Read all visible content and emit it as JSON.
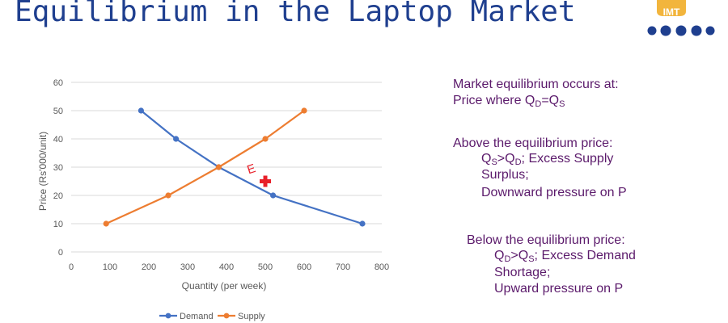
{
  "slide": {
    "title": "Equilibrium in the Laptop Market",
    "logo_text": "IMT",
    "colors": {
      "title": "#1f3f8f",
      "notes": "#5b1a6b",
      "demand": "#4472c4",
      "supply": "#ed7d31",
      "marker": "#e8202a",
      "logo_blue": "#1f3f8f",
      "logo_gold": "#f2b53d"
    }
  },
  "notes": {
    "block1": {
      "line1": "Market equilibrium occurs at:",
      "line2": {
        "prefix": "Price where Q",
        "sub1": "D",
        "mid": "=Q",
        "sub2": "S"
      }
    },
    "block2": {
      "heading": "Above the equilibrium price:",
      "line1": {
        "q1": "Q",
        "sub1": "S",
        "op": ">Q",
        "sub2": "D",
        "rest": "; Excess Supply"
      },
      "line2": "Surplus;",
      "line3": "Downward pressure on P"
    },
    "block3": {
      "heading": "Below the equilibrium price:",
      "line1": {
        "q1": "Q",
        "sub1": "D",
        "op": ">Q",
        "sub2": "S",
        "rest": "; Excess Demand"
      },
      "line2": "Shortage;",
      "line3": "Upward pressure on P"
    }
  },
  "chart_data": {
    "type": "line",
    "title": "",
    "xlabel": "Quantity (per week)",
    "ylabel": "Price (Rs'000/unit)",
    "xlim": [
      0,
      800
    ],
    "ylim": [
      0,
      60
    ],
    "xticks": [
      "0",
      "100",
      "200",
      "300",
      "400",
      "500",
      "600",
      "700",
      "800"
    ],
    "yticks": [
      "0",
      "10",
      "20",
      "30",
      "40",
      "50",
      "60"
    ],
    "grid": true,
    "legend_position": "bottom",
    "series": [
      {
        "name": "Demand",
        "color": "#4472c4",
        "points": [
          [
            180,
            50
          ],
          [
            270,
            40
          ],
          [
            380,
            30
          ],
          [
            520,
            20
          ],
          [
            750,
            10
          ]
        ]
      },
      {
        "name": "Supply",
        "color": "#ed7d31",
        "points": [
          [
            90,
            10
          ],
          [
            250,
            20
          ],
          [
            380,
            30
          ],
          [
            500,
            40
          ],
          [
            600,
            50
          ]
        ]
      }
    ],
    "annotations": [
      {
        "label": "E",
        "x": 500,
        "y": 25,
        "marker": "plus",
        "color": "#e8202a"
      }
    ]
  }
}
